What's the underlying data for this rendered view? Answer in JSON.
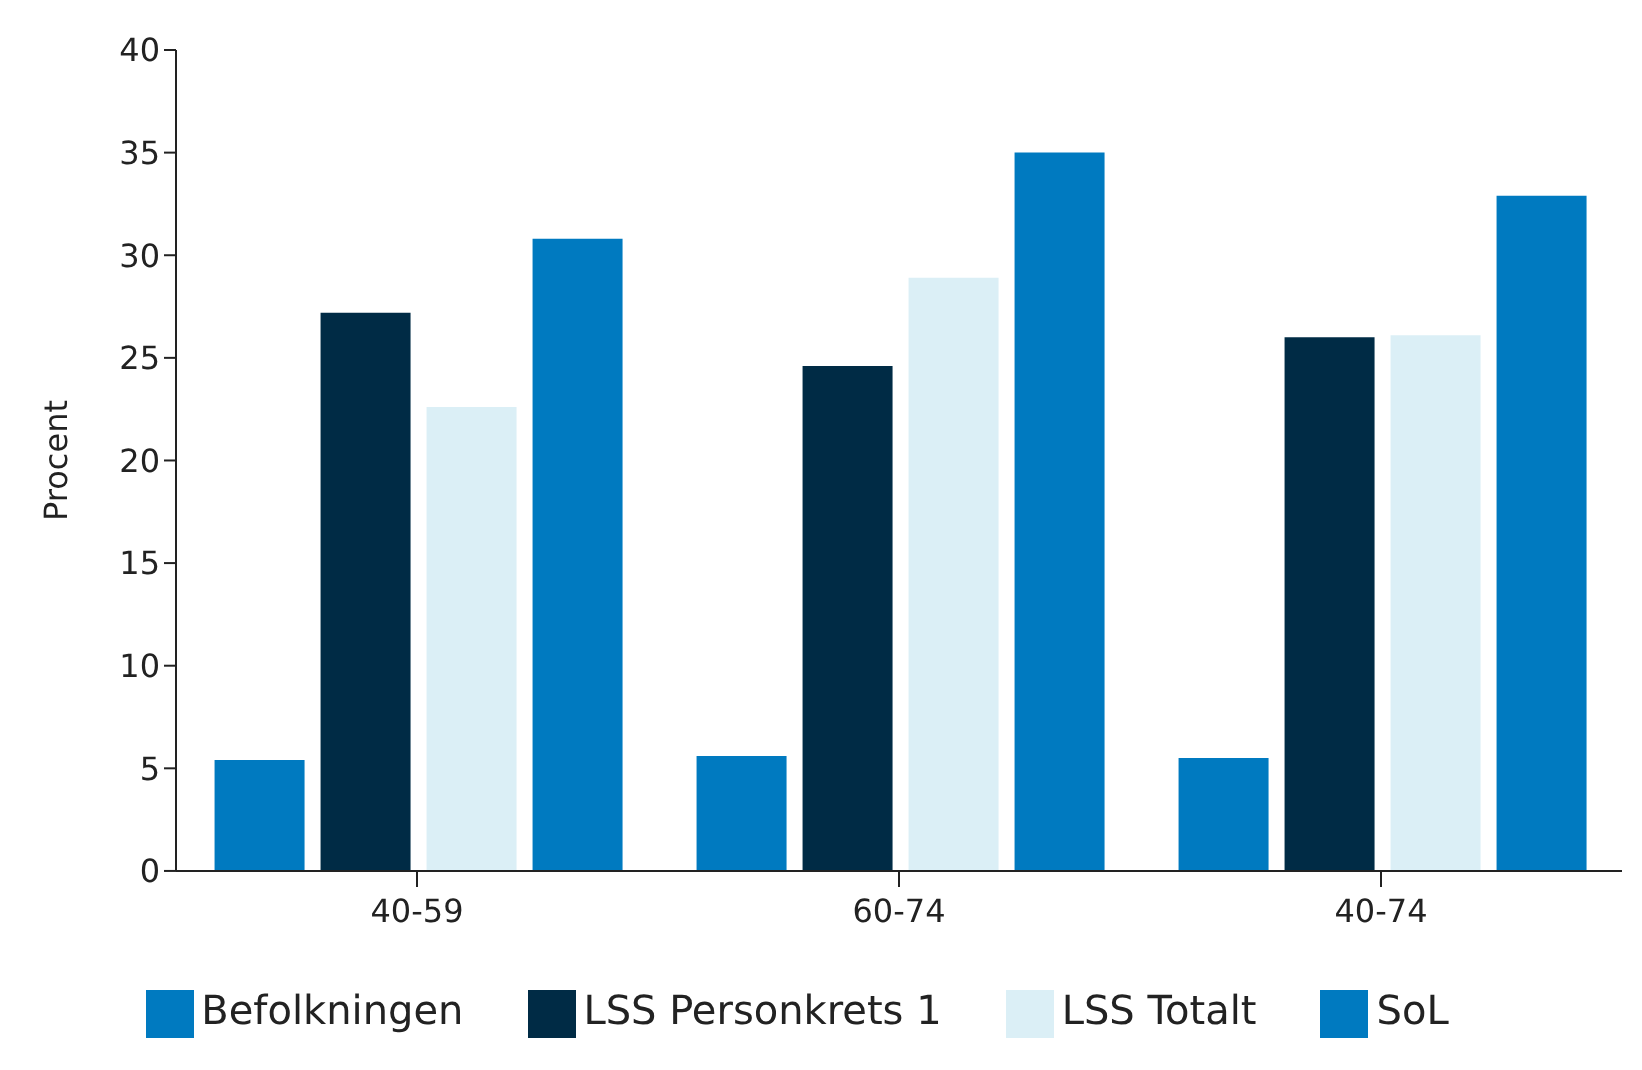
{
  "chart_data": {
    "type": "bar",
    "ylabel": "Procent",
    "categories": [
      "40-59",
      "60-74",
      "40-74"
    ],
    "series": [
      {
        "name": "Befolkningen",
        "color": "#007ac0",
        "values": [
          5.4,
          5.6,
          5.5
        ]
      },
      {
        "name": "LSS Personkrets 1",
        "color": "#002b45",
        "values": [
          27.2,
          24.6,
          26.0
        ]
      },
      {
        "name": "LSS Totalt",
        "color": "#dbeff6",
        "values": [
          22.6,
          28.9,
          26.1
        ]
      },
      {
        "name": "SoL",
        "color": "#007ac0",
        "values": [
          30.8,
          35.0,
          32.9
        ]
      }
    ],
    "ylim": [
      0,
      40
    ],
    "yticks": [
      0,
      5,
      10,
      15,
      20,
      25,
      30,
      35,
      40
    ],
    "grid": false,
    "legend": "bottom"
  }
}
